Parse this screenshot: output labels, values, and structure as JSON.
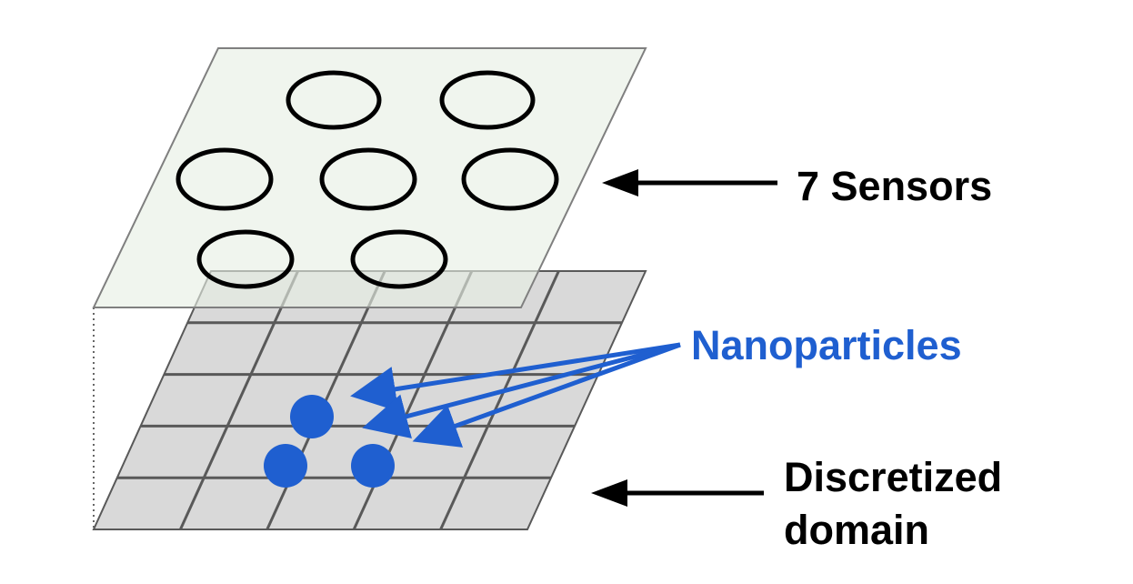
{
  "labels": {
    "sensors": "7 Sensors",
    "nanoparticles": "Nanoparticles",
    "domain_line1": "Discretized",
    "domain_line2": "domain"
  },
  "colors": {
    "sensor_plane_fill": "#e6efe3",
    "grid_fill": "#d9d9d9",
    "grid_line": "#595959",
    "sensor_outline": "#000000",
    "nanoparticle": "#1f5fd0",
    "nanoparticle_label": "#1f5fd0",
    "arrow_black": "#000000"
  },
  "grid": {
    "rows": 5,
    "cols": 5
  },
  "sensors": {
    "count": 7
  },
  "nanoparticles": {
    "count": 3
  }
}
